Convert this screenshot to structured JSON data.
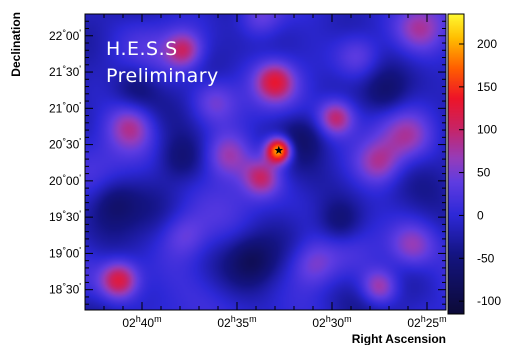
{
  "chart_data": {
    "type": "heatmap",
    "title": "",
    "watermark": [
      "H.E.S.S",
      "Preliminary"
    ],
    "xlabel": "Right Ascension",
    "ylabel": "Declination",
    "x_ticks": [
      "02h40m",
      "02h35m",
      "02h30m",
      "02h25m"
    ],
    "x_tick_values_ra_min": [
      160,
      155,
      150,
      145
    ],
    "y_ticks": [
      "22°00'",
      "21°30'",
      "21°00'",
      "20°30'",
      "20°00'",
      "19°30'",
      "19°00'",
      "18°30'"
    ],
    "y_tick_values_deg": [
      22.0,
      21.5,
      21.0,
      20.5,
      20.0,
      19.5,
      19.0,
      18.5
    ],
    "xlim_ra_min": [
      163.0,
      144.0
    ],
    "ylim_deg": [
      18.22,
      22.3
    ],
    "colorbar": {
      "ticks": [
        200,
        150,
        100,
        50,
        0,
        -50,
        -100
      ],
      "range": [
        -115,
        235
      ]
    },
    "background_level": -8,
    "sources": [
      {
        "ra_min": 152.8,
        "dec": 20.42,
        "value": 235,
        "label": "source",
        "marker": "star"
      },
      {
        "ra_min": 153.7,
        "dec": 20.05,
        "value": 95
      },
      {
        "ra_min": 149.8,
        "dec": 20.87,
        "value": 120
      },
      {
        "ra_min": 153.0,
        "dec": 21.37,
        "value": 100
      },
      {
        "ra_min": 157.8,
        "dec": 21.8,
        "value": 100
      },
      {
        "ra_min": 161.2,
        "dec": 18.63,
        "value": 125
      },
      {
        "ra_min": 147.5,
        "dec": 18.53,
        "value": 100
      },
      {
        "ra_min": 160.6,
        "dec": 20.75,
        "value": 85
      },
      {
        "ra_min": 155.5,
        "dec": 20.35,
        "value": 80
      },
      {
        "ra_min": 145.8,
        "dec": 19.1,
        "value": 75
      },
      {
        "ra_min": 147.5,
        "dec": 20.25,
        "value": 80
      },
      {
        "ra_min": 148.6,
        "dec": 21.72,
        "value": 60
      },
      {
        "ra_min": 157.8,
        "dec": 19.25,
        "value": 50
      },
      {
        "ra_min": 153.8,
        "dec": 22.25,
        "value": 70
      },
      {
        "ra_min": 145.4,
        "dec": 22.1,
        "value": 60
      },
      {
        "ra_min": 151.0,
        "dec": 18.85,
        "value": 55
      },
      {
        "ra_min": 156.2,
        "dec": 21.1,
        "value": 60
      },
      {
        "ra_min": 146.0,
        "dec": 20.6,
        "value": 50
      },
      {
        "ra_min": 149.6,
        "dec": 19.42,
        "value": -60
      },
      {
        "ra_min": 161.5,
        "dec": 19.7,
        "value": -50
      },
      {
        "ra_min": 151.6,
        "dec": 20.6,
        "value": -40
      },
      {
        "ra_min": 158.0,
        "dec": 20.3,
        "value": -45
      },
      {
        "ra_min": 154.2,
        "dec": 18.9,
        "value": -50
      },
      {
        "ra_min": 147.2,
        "dec": 21.2,
        "value": -55
      },
      {
        "ra_min": 160.3,
        "dec": 21.3,
        "value": -40
      }
    ]
  }
}
